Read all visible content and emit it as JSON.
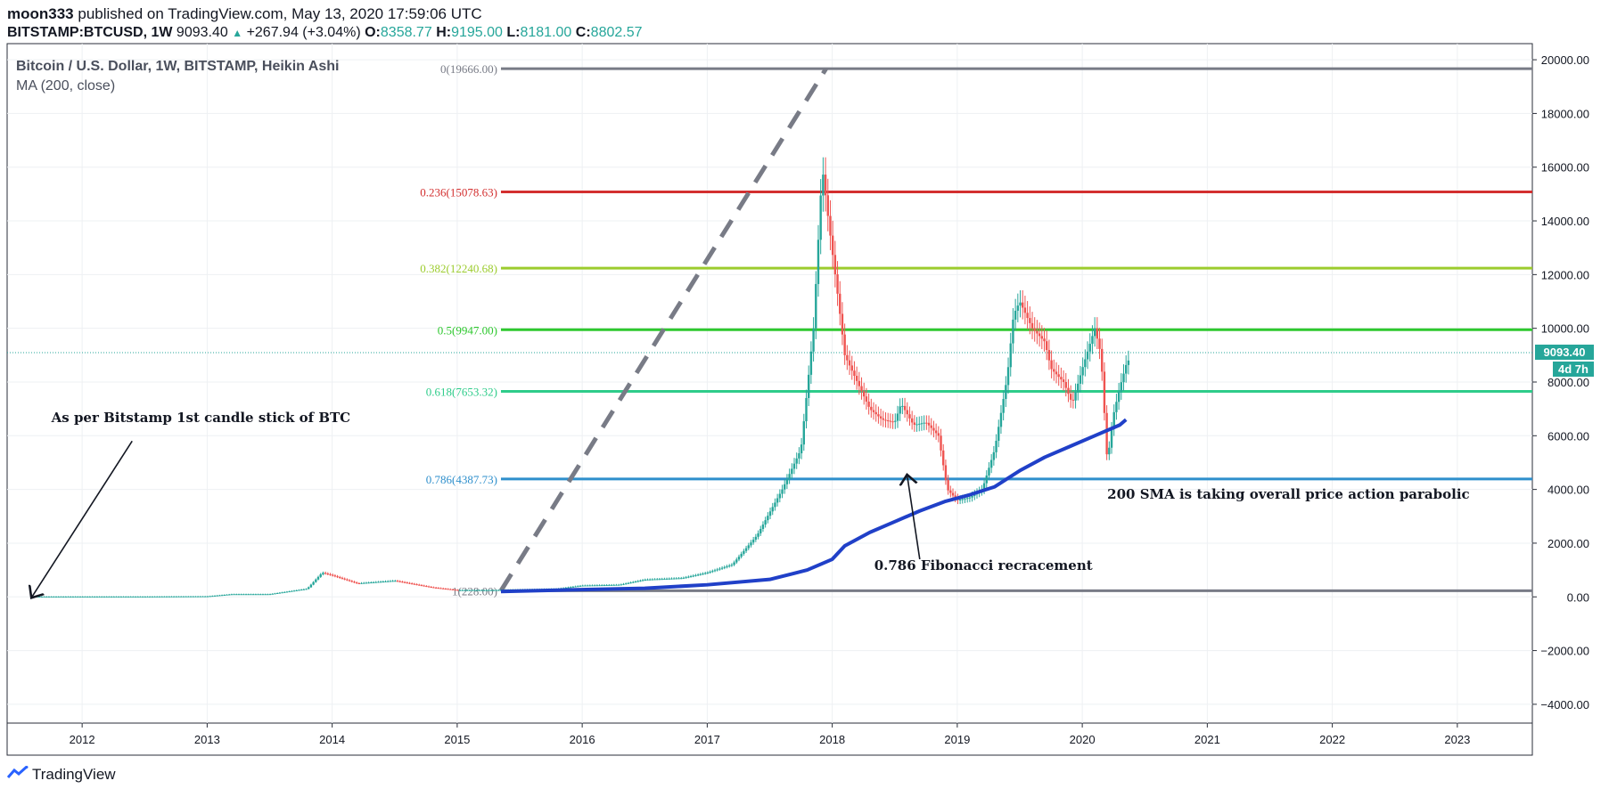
{
  "header": {
    "author": "moon333",
    "published": "published on TradingView.com, May 13, 2020 17:59:06 UTC",
    "symbol": "BITSTAMP:BTCUSD, 1W",
    "last": "9093.40",
    "change": "+267.94 (+3.04%)",
    "o_label": "O:",
    "o": "8358.77",
    "h_label": "H:",
    "h": "9195.00",
    "l_label": "L:",
    "l": "8181.00",
    "c_label": "C:",
    "c": "8802.57"
  },
  "legend": {
    "title": "Bitcoin / U.S. Dollar, 1W, BITSTAMP, Heikin Ashi",
    "indicator": "MA (200, close)"
  },
  "price_tag": "9093.40",
  "time_tag": "4d 7h",
  "footer": {
    "brand": "TradingView"
  },
  "colors": {
    "up": "#26a69a",
    "down": "#ef5350",
    "ma": "#2040c8",
    "fib_0": "#787b86",
    "fib_0236": "#d32f2f",
    "fib_0382": "#9ccc2e",
    "fib_05": "#2ec82e",
    "fib_0618": "#2ecc8a",
    "fib_0786": "#2e8fcc",
    "fib_1": "#787b86",
    "grid": "#eef0f3",
    "axis_text": "#131722"
  },
  "chart_data": {
    "type": "line",
    "title": "Bitcoin / U.S. Dollar, 1W, BITSTAMP, Heikin Ashi",
    "xlabel": "",
    "ylabel": "",
    "ylim": [
      -4700,
      20600
    ],
    "xlim": [
      2011.4,
      2023.6
    ],
    "x_ticks": [
      "2012",
      "2013",
      "2014",
      "2015",
      "2016",
      "2017",
      "2018",
      "2019",
      "2020",
      "2021",
      "2022",
      "2023"
    ],
    "y_ticks": [
      "20000.00",
      "18000.00",
      "16000.00",
      "14000.00",
      "12000.00",
      "10000.00",
      "8000.00",
      "6000.00",
      "4000.00",
      "2000.00",
      "0.00",
      "−2000.00",
      "−4000.00"
    ],
    "y_tick_values": [
      20000,
      18000,
      16000,
      14000,
      12000,
      10000,
      8000,
      6000,
      4000,
      2000,
      0,
      -2000,
      -4000
    ],
    "grid": true,
    "last_price": 9093.4,
    "price_series": {
      "name": "Bitcoin / U.S. Dollar",
      "x": [
        2011.6,
        2012.0,
        2012.5,
        2013.0,
        2013.2,
        2013.5,
        2013.8,
        2013.92,
        2014.0,
        2014.2,
        2014.5,
        2014.8,
        2015.0,
        2015.3,
        2015.5,
        2015.8,
        2016.0,
        2016.3,
        2016.5,
        2016.8,
        2017.0,
        2017.2,
        2017.4,
        2017.6,
        2017.75,
        2017.85,
        2017.92,
        2017.97,
        2018.05,
        2018.1,
        2018.2,
        2018.3,
        2018.4,
        2018.5,
        2018.55,
        2018.65,
        2018.75,
        2018.85,
        2018.92,
        2019.0,
        2019.1,
        2019.2,
        2019.3,
        2019.4,
        2019.45,
        2019.5,
        2019.6,
        2019.7,
        2019.75,
        2019.85,
        2019.92,
        2020.0,
        2020.1,
        2020.15,
        2020.2,
        2020.25,
        2020.3,
        2020.36
      ],
      "y": [
        10,
        10,
        10,
        20,
        100,
        100,
        300,
        900,
        800,
        500,
        600,
        350,
        250,
        250,
        270,
        300,
        420,
        450,
        640,
        700,
        900,
        1200,
        2300,
        4000,
        5500,
        10000,
        16000,
        14000,
        11000,
        9000,
        8000,
        7000,
        6600,
        6500,
        7200,
        6400,
        6500,
        6000,
        4000,
        3600,
        3700,
        4000,
        5500,
        8200,
        10500,
        11000,
        10000,
        9500,
        8500,
        8000,
        7200,
        8500,
        10000,
        9000,
        5000,
        6800,
        7800,
        8800
      ]
    },
    "series": [
      {
        "name": "MA (200, close)",
        "x": [
          2015.35,
          2015.8,
          2016.5,
          2017.0,
          2017.5,
          2017.8,
          2018.0,
          2018.1,
          2018.3,
          2018.5,
          2018.7,
          2018.9,
          2019.1,
          2019.3,
          2019.5,
          2019.7,
          2019.9,
          2020.1,
          2020.3,
          2020.35
        ],
        "values": [
          200,
          250,
          320,
          450,
          650,
          1000,
          1400,
          1900,
          2400,
          2800,
          3200,
          3550,
          3800,
          4100,
          4700,
          5200,
          5600,
          6000,
          6400,
          6600
        ]
      }
    ],
    "fib_levels": [
      {
        "label": "0(19666.00)",
        "ratio": 0,
        "value": 19666.0
      },
      {
        "label": "0.236(15078.63)",
        "ratio": 0.236,
        "value": 15078.63
      },
      {
        "label": "0.382(12240.68)",
        "ratio": 0.382,
        "value": 12240.68
      },
      {
        "label": "0.5(9947.00)",
        "ratio": 0.5,
        "value": 9947.0
      },
      {
        "label": "0.618(7653.32)",
        "ratio": 0.618,
        "value": 7653.32
      },
      {
        "label": "0.786(4387.73)",
        "ratio": 0.786,
        "value": 4387.73
      },
      {
        "label": "1(228.00)",
        "ratio": 1,
        "value": 228.0
      }
    ],
    "fib_trend": {
      "x1": 2015.35,
      "y1": 228.0,
      "x2": 2017.95,
      "y2": 19666.0
    },
    "fib_start_x": 2015.35,
    "annotations": [
      {
        "text": "As per Bitstamp 1st candle stick of BTC",
        "x": 2012.95,
        "y": 6500,
        "arrow_from": [
          2012.4,
          5800
        ],
        "arrow_to": [
          2011.6,
          10
        ]
      },
      {
        "text": "0.786 Fibonacci recracement",
        "x": 2018.35,
        "y": 1000,
        "arrow_from": [
          2018.7,
          1400
        ],
        "arrow_to": [
          2018.6,
          4500
        ]
      },
      {
        "text": "200 SMA is taking overall price action parabolic",
        "x": 2020.2,
        "y": 3650
      }
    ]
  }
}
